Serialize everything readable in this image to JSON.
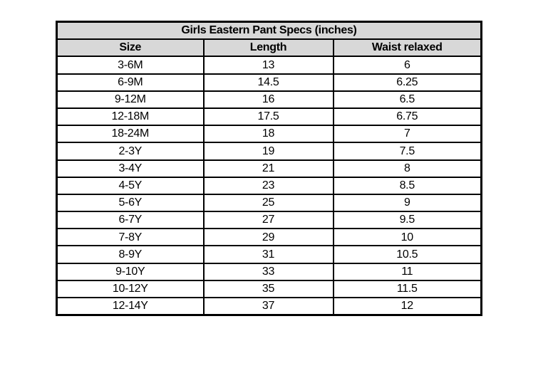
{
  "colors": {
    "header_background": "#d8d8d8",
    "border": "#000000",
    "text": "#000000",
    "page_background": "#ffffff"
  },
  "chart_data": {
    "type": "table",
    "title": "Girls Eastern Pant Specs (inches)",
    "columns": [
      "Size",
      "Length",
      "Waist relaxed"
    ],
    "rows": [
      [
        "3-6M",
        "13",
        "6"
      ],
      [
        "6-9M",
        "14.5",
        "6.25"
      ],
      [
        "9-12M",
        "16",
        "6.5"
      ],
      [
        "12-18M",
        "17.5",
        "6.75"
      ],
      [
        "18-24M",
        "18",
        "7"
      ],
      [
        "2-3Y",
        "19",
        "7.5"
      ],
      [
        "3-4Y",
        "21",
        "8"
      ],
      [
        "4-5Y",
        "23",
        "8.5"
      ],
      [
        "5-6Y",
        "25",
        "9"
      ],
      [
        "6-7Y",
        "27",
        "9.5"
      ],
      [
        "7-8Y",
        "29",
        "10"
      ],
      [
        "8-9Y",
        "31",
        "10.5"
      ],
      [
        "9-10Y",
        "33",
        "11"
      ],
      [
        "10-12Y",
        "35",
        "11.5"
      ],
      [
        "12-14Y",
        "37",
        "12"
      ]
    ]
  }
}
